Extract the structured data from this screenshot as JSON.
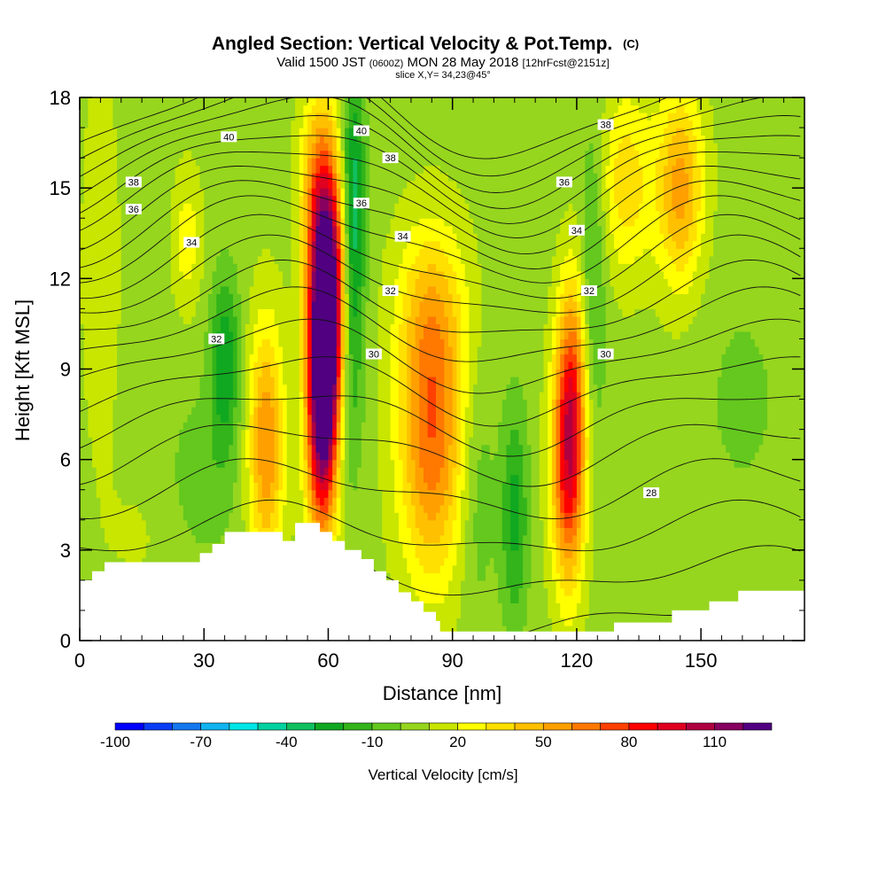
{
  "title": {
    "main": "Angled Section: Vertical Velocity & Pot.Temp.",
    "main_suffix": "(C)",
    "valid_a": "Valid 1500 JST",
    "valid_b": "(0600Z)",
    "valid_c": "MON 28 May 2018",
    "valid_d": "[12hrFcst@2151z]",
    "slice": "slice X,Y= 34,23@45°"
  },
  "chart_data": {
    "type": "heatmap",
    "x_axis": {
      "label": "Distance [nm]",
      "range": [
        0,
        175
      ],
      "ticks": [
        "0",
        "30",
        "60",
        "90",
        "120",
        "150"
      ],
      "tick_values": [
        0,
        30,
        60,
        90,
        120,
        150
      ]
    },
    "y_axis": {
      "label": "Height [Kft MSL]",
      "range": [
        0,
        18
      ],
      "ticks": [
        "0",
        "3",
        "6",
        "9",
        "12",
        "15",
        "18"
      ],
      "tick_values": [
        0,
        3,
        6,
        9,
        12,
        15,
        18
      ]
    },
    "colorbar": {
      "label": "Vertical Velocity [cm/s]",
      "tick_labels": [
        "-100",
        "-70",
        "-40",
        "-10",
        "20",
        "50",
        "80",
        "110"
      ],
      "tick_values": [
        -100,
        -70,
        -40,
        -10,
        20,
        50,
        80,
        110
      ],
      "levels": [
        -100,
        -90,
        -80,
        -70,
        -60,
        -50,
        -40,
        -30,
        -20,
        -10,
        0,
        10,
        20,
        30,
        40,
        50,
        60,
        70,
        80,
        90,
        100,
        110,
        120
      ],
      "colors": [
        "#0000ff",
        "#0a3cf5",
        "#1478f0",
        "#10b4f0",
        "#00e6e6",
        "#00d2a0",
        "#10c060",
        "#10a820",
        "#32b41a",
        "#64c81e",
        "#96d61e",
        "#c8e600",
        "#ffff00",
        "#ffe000",
        "#ffc000",
        "#ffa000",
        "#ff7800",
        "#ff4000",
        "#ff0000",
        "#e00020",
        "#b00040",
        "#880060",
        "#500080"
      ]
    },
    "velocity_cells": [
      {
        "x": 58.5,
        "z": 8.3,
        "sx": 2.6,
        "sz": 3.3,
        "w": 130
      },
      {
        "x": 60.5,
        "z": 11.5,
        "sx": 2.8,
        "sz": 3.0,
        "w": 95
      },
      {
        "x": 57.5,
        "z": 14.8,
        "sx": 3.0,
        "sz": 2.4,
        "w": 45
      },
      {
        "x": 45,
        "z": 6.5,
        "sx": 3.0,
        "sz": 2.8,
        "w": 55
      },
      {
        "x": 85,
        "z": 6.6,
        "sx": 5.5,
        "sz": 3.2,
        "w": 60
      },
      {
        "x": 85,
        "z": 11.0,
        "sx": 6.0,
        "sz": 2.2,
        "w": 28
      },
      {
        "x": 118,
        "z": 5.8,
        "sx": 2.8,
        "sz": 2.8,
        "w": 80
      },
      {
        "x": 119,
        "z": 9.0,
        "sx": 2.5,
        "sz": 2.5,
        "w": 40
      },
      {
        "x": 145,
        "z": 15.0,
        "sx": 4.0,
        "sz": 2.3,
        "w": 48
      },
      {
        "x": 132,
        "z": 15.2,
        "sx": 4.5,
        "sz": 2.2,
        "w": 30
      },
      {
        "x": 26,
        "z": 13.3,
        "sx": 2.5,
        "sz": 1.6,
        "w": 20
      },
      {
        "x": 5,
        "z": 12.5,
        "sx": 3.5,
        "sz": 5.0,
        "w": 10
      },
      {
        "x": 66,
        "z": 14.5,
        "sx": 2.0,
        "sz": 3.0,
        "w": -45
      },
      {
        "x": 65,
        "z": 9.0,
        "sx": 2.3,
        "sz": 2.8,
        "w": -25
      },
      {
        "x": 35,
        "z": 9.3,
        "sx": 2.5,
        "sz": 2.0,
        "w": -35
      },
      {
        "x": 105,
        "z": 4.2,
        "sx": 2.3,
        "sz": 2.6,
        "w": -30
      },
      {
        "x": 96,
        "z": 5.0,
        "sx": 3.0,
        "sz": 3.0,
        "w": -14
      },
      {
        "x": 124,
        "z": 12.0,
        "sx": 2.2,
        "sz": 4.0,
        "w": -20
      },
      {
        "x": 30,
        "z": 5.5,
        "sx": 6.0,
        "sz": 2.0,
        "w": -12
      },
      {
        "x": 160,
        "z": 8.0,
        "sx": 8.0,
        "sz": 3.0,
        "w": -8
      },
      {
        "x": 14,
        "z": 3.5,
        "sx": 6.0,
        "sz": 1.5,
        "w": 5
      }
    ],
    "theta_labels": [
      {
        "text": "40",
        "x": 36,
        "z": 16.7
      },
      {
        "text": "40",
        "x": 68,
        "z": 16.9
      },
      {
        "text": "38",
        "x": 13,
        "z": 15.2
      },
      {
        "text": "38",
        "x": 75,
        "z": 16.0
      },
      {
        "text": "38",
        "x": 127,
        "z": 17.1
      },
      {
        "text": "36",
        "x": 13,
        "z": 14.3
      },
      {
        "text": "36",
        "x": 68,
        "z": 14.5
      },
      {
        "text": "36",
        "x": 117,
        "z": 15.2
      },
      {
        "text": "34",
        "x": 27,
        "z": 13.2
      },
      {
        "text": "34",
        "x": 78,
        "z": 13.4
      },
      {
        "text": "34",
        "x": 120,
        "z": 13.6
      },
      {
        "text": "32",
        "x": 33,
        "z": 10.0
      },
      {
        "text": "32",
        "x": 75,
        "z": 11.6
      },
      {
        "text": "32",
        "x": 123,
        "z": 11.6
      },
      {
        "text": "30",
        "x": 71,
        "z": 9.5
      },
      {
        "text": "30",
        "x": 127,
        "z": 9.5
      },
      {
        "text": "28",
        "x": 138,
        "z": 4.9
      }
    ],
    "terrain": [
      [
        0,
        2.0
      ],
      [
        3,
        2.0
      ],
      [
        3,
        2.3
      ],
      [
        6,
        2.3
      ],
      [
        6,
        2.6
      ],
      [
        29,
        2.6
      ],
      [
        29,
        2.9
      ],
      [
        32,
        2.9
      ],
      [
        32,
        3.2
      ],
      [
        35,
        3.2
      ],
      [
        35,
        3.6
      ],
      [
        49,
        3.6
      ],
      [
        49,
        3.3
      ],
      [
        52,
        3.3
      ],
      [
        52,
        3.9
      ],
      [
        58,
        3.9
      ],
      [
        58,
        3.6
      ],
      [
        61,
        3.6
      ],
      [
        61,
        3.3
      ],
      [
        64,
        3.3
      ],
      [
        64,
        3.0
      ],
      [
        68,
        3.0
      ],
      [
        68,
        2.7
      ],
      [
        71,
        2.7
      ],
      [
        71,
        2.3
      ],
      [
        74,
        2.3
      ],
      [
        74,
        2.0
      ],
      [
        77,
        2.0
      ],
      [
        77,
        1.6
      ],
      [
        80,
        1.6
      ],
      [
        80,
        1.3
      ],
      [
        83,
        1.3
      ],
      [
        83,
        0.95
      ],
      [
        86,
        0.95
      ],
      [
        86,
        0.65
      ],
      [
        87,
        0.65
      ],
      [
        87,
        0.3
      ],
      [
        129,
        0.3
      ],
      [
        129,
        0.6
      ],
      [
        143,
        0.6
      ],
      [
        143,
        1.0
      ],
      [
        152,
        1.0
      ],
      [
        152,
        1.3
      ],
      [
        159,
        1.3
      ],
      [
        159,
        1.65
      ],
      [
        175,
        1.65
      ]
    ]
  }
}
